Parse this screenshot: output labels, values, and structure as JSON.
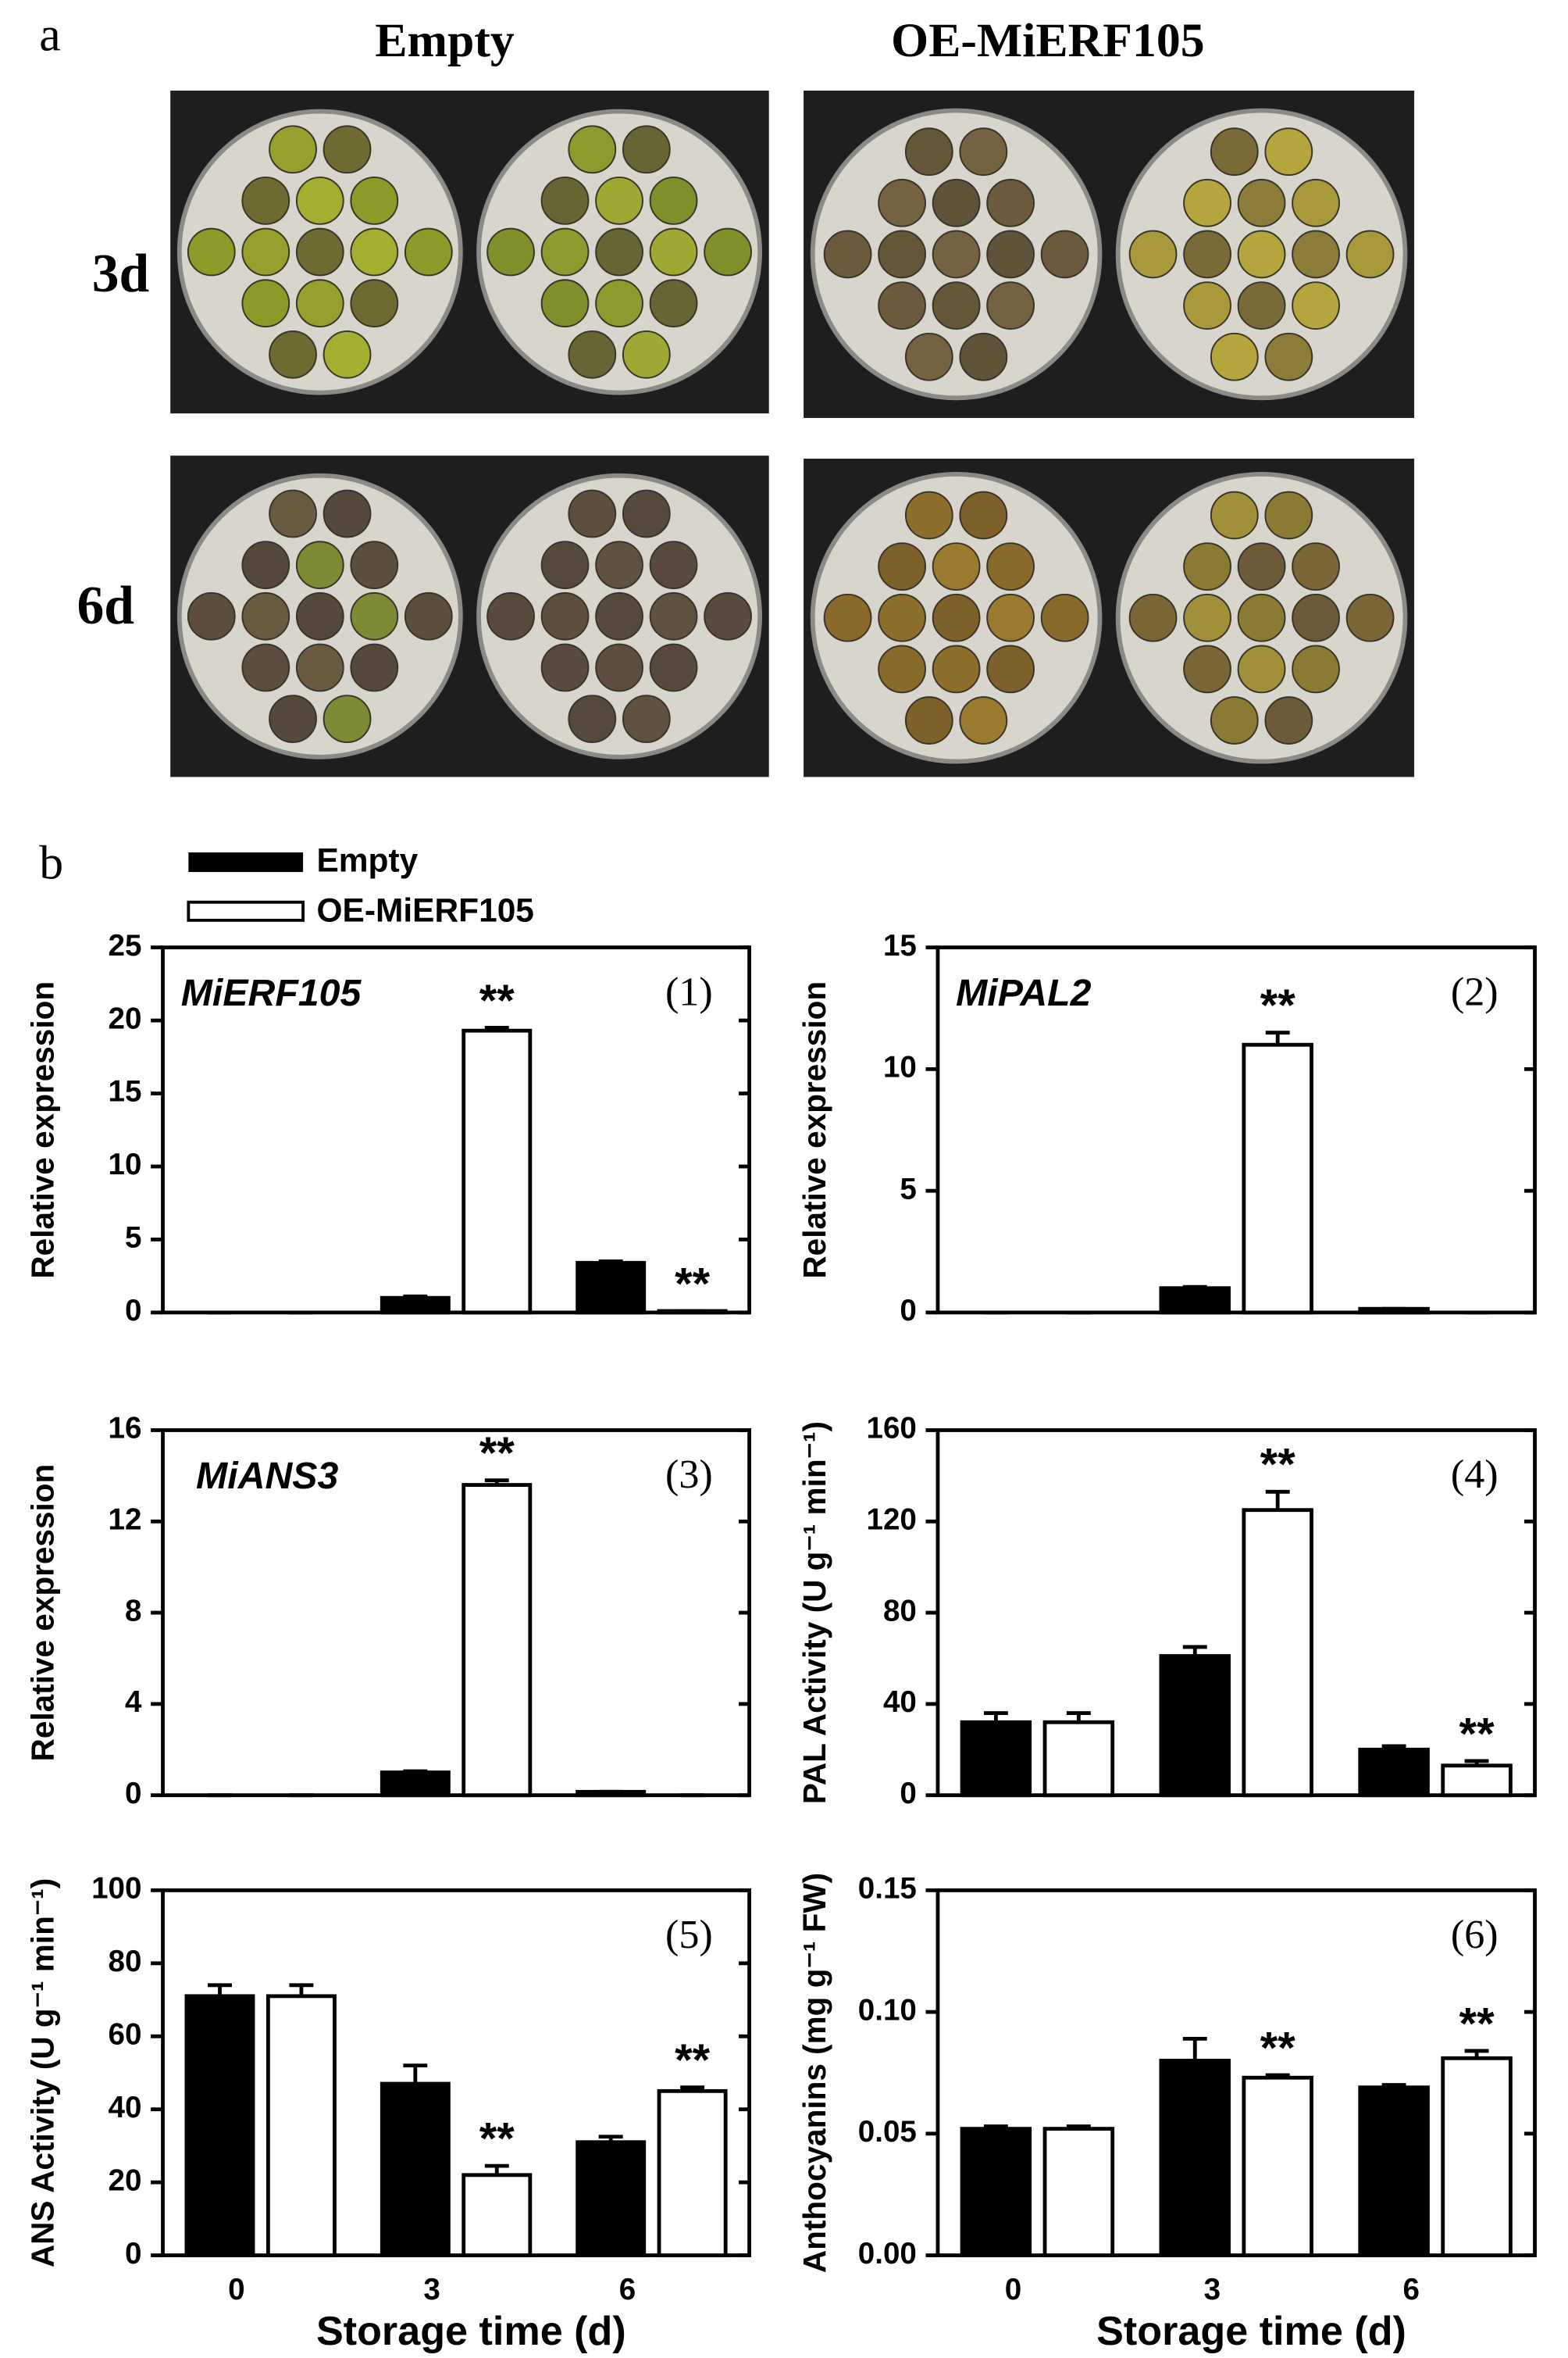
{
  "panel_a": {
    "label": "a",
    "columns": [
      "Empty",
      "OE-MiERF105"
    ],
    "rows": [
      "3d",
      "6d"
    ]
  },
  "panel_b_label": "b",
  "chart_data": [
    {
      "type": "bar",
      "title": "MiERF105",
      "panel_label": "(1)",
      "ylabel": "Relative expression",
      "categories": [
        null,
        null,
        null
      ],
      "ylim": [
        0,
        25
      ],
      "yticks": [
        0,
        5,
        10,
        15,
        20,
        25
      ],
      "series": [
        {
          "name": "Empty",
          "color": "#000000",
          "values": [
            0,
            1.0,
            3.4
          ],
          "errors": [
            0,
            0.1,
            0.1
          ],
          "significance": [
            null,
            null,
            null
          ]
        },
        {
          "name": "OE-MiERF105",
          "color": "#ffffff",
          "values": [
            0,
            19.3,
            0.1
          ],
          "errors": [
            0,
            0.2,
            0
          ],
          "significance": [
            null,
            "**",
            "**"
          ]
        }
      ]
    },
    {
      "type": "bar",
      "title": "MiPAL2",
      "panel_label": "(2)",
      "ylabel": "Relative expression",
      "categories": [
        null,
        null,
        null
      ],
      "ylim": [
        0,
        15
      ],
      "yticks": [
        0,
        5,
        10,
        15
      ],
      "series": [
        {
          "name": "Empty",
          "color": "#000000",
          "values": [
            0,
            1.0,
            0.15
          ],
          "errors": [
            0,
            0.05,
            0
          ],
          "significance": [
            null,
            null,
            null
          ]
        },
        {
          "name": "OE-MiERF105",
          "color": "#ffffff",
          "values": [
            0,
            11.0,
            0
          ],
          "errors": [
            0,
            0.5,
            0
          ],
          "significance": [
            null,
            "**",
            null
          ]
        }
      ]
    },
    {
      "type": "bar",
      "title": "MiANS3",
      "panel_label": "(3)",
      "ylabel": "Relative expression",
      "categories": [
        null,
        null,
        null
      ],
      "ylim": [
        0,
        16
      ],
      "yticks": [
        0,
        4,
        8,
        12,
        16
      ],
      "series": [
        {
          "name": "Empty",
          "color": "#000000",
          "values": [
            0,
            1.0,
            0.15
          ],
          "errors": [
            0,
            0.05,
            0
          ],
          "significance": [
            null,
            null,
            null
          ]
        },
        {
          "name": "OE-MiERF105",
          "color": "#ffffff",
          "values": [
            0,
            13.6,
            0
          ],
          "errors": [
            0,
            0.2,
            0
          ],
          "significance": [
            null,
            "**",
            null
          ]
        }
      ]
    },
    {
      "type": "bar",
      "panel_label": "(4)",
      "ylabel": "PAL Activity (U g⁻¹ min⁻¹)",
      "categories": [
        null,
        null,
        null
      ],
      "ylim": [
        0,
        160
      ],
      "yticks": [
        0,
        40,
        80,
        120,
        160
      ],
      "series": [
        {
          "name": "Empty",
          "color": "#000000",
          "values": [
            32,
            61,
            20
          ],
          "errors": [
            4,
            4,
            1.5
          ],
          "significance": [
            null,
            null,
            null
          ]
        },
        {
          "name": "OE-MiERF105",
          "color": "#ffffff",
          "values": [
            32,
            125,
            13
          ],
          "errors": [
            4,
            8,
            2
          ],
          "significance": [
            null,
            "**",
            "**"
          ]
        }
      ]
    },
    {
      "type": "bar",
      "panel_label": "(5)",
      "ylabel": "ANS Activity (U g⁻¹ min⁻¹)",
      "xlabel": "Storage time (d)",
      "categories": [
        "0",
        "3",
        "6"
      ],
      "ylim": [
        0,
        100
      ],
      "yticks": [
        0,
        20,
        40,
        60,
        80,
        100
      ],
      "series": [
        {
          "name": "Empty",
          "color": "#000000",
          "values": [
            71,
            47,
            31
          ],
          "errors": [
            3,
            5,
            1.5
          ],
          "significance": [
            null,
            null,
            null
          ]
        },
        {
          "name": "OE-MiERF105",
          "color": "#ffffff",
          "values": [
            71,
            22,
            45
          ],
          "errors": [
            3,
            2.5,
            1
          ],
          "significance": [
            null,
            "**",
            "**"
          ]
        }
      ]
    },
    {
      "type": "bar",
      "panel_label": "(6)",
      "ylabel": "Anthocyanins (mg g⁻¹ FW)",
      "xlabel": "Storage time (d)",
      "categories": [
        "0",
        "3",
        "6"
      ],
      "ylim": [
        0,
        0.15
      ],
      "yticks": [
        {
          "value": 0,
          "label": "0.00"
        },
        0.05,
        {
          "value": 0.1,
          "label": "0.10"
        },
        0.15
      ],
      "series": [
        {
          "name": "Empty",
          "color": "#000000",
          "values": [
            0.052,
            0.08,
            0.069
          ],
          "errors": [
            0.001,
            0.009,
            0.001
          ],
          "significance": [
            null,
            null,
            null
          ]
        },
        {
          "name": "OE-MiERF105",
          "color": "#ffffff",
          "values": [
            0.052,
            0.073,
            0.081
          ],
          "errors": [
            0.001,
            0.001,
            0.003
          ],
          "significance": [
            null,
            "**",
            "**"
          ]
        }
      ]
    }
  ]
}
